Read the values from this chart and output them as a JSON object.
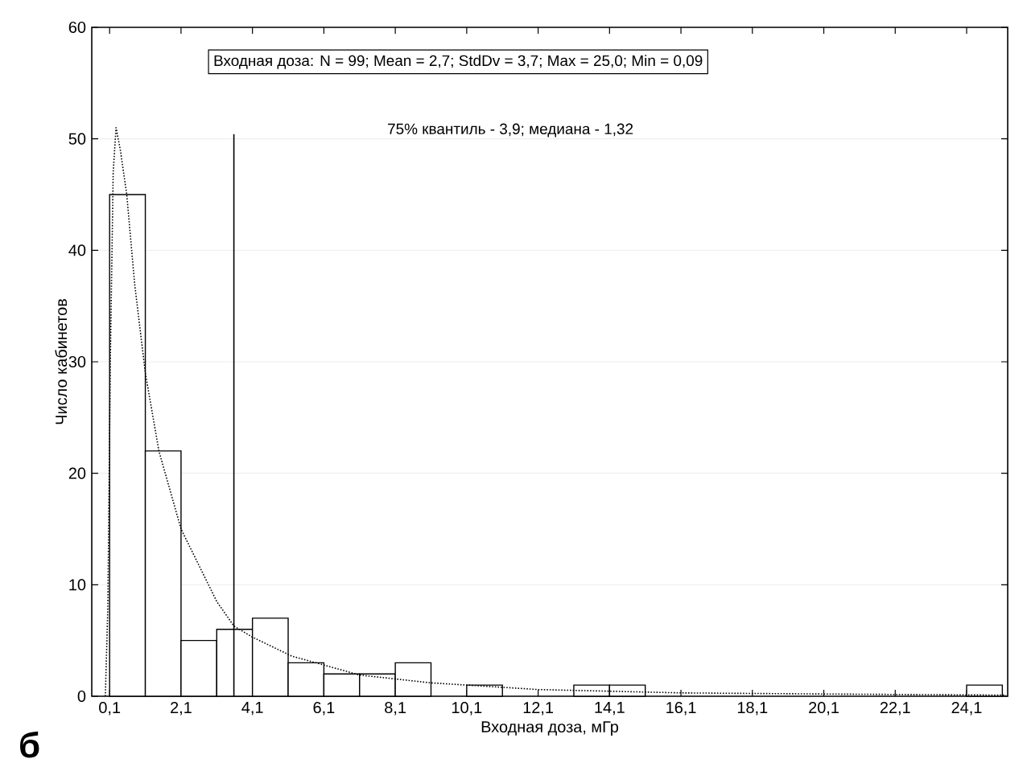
{
  "chart_data": {
    "type": "histogram",
    "title": "Входная доза:   N = 99; Mean = 2,7; StdDv = 3,7; Max = 25,0; Min = 0,09",
    "xlabel": "Входная доза, мГр",
    "ylabel": "Число кабинетов",
    "annotations": [
      "75% квантиль - 3,9; медиана - 1,32",
      "б"
    ],
    "bins": [
      0.1,
      1.1,
      2.1,
      3.1,
      4.1,
      5.1,
      6.1,
      7.1,
      8.1,
      9.1,
      10.1,
      11.1,
      12.1,
      13.1,
      14.1,
      15.1,
      16.1,
      17.1,
      18.1,
      19.1,
      20.1,
      21.1,
      22.1,
      23.1,
      24.1,
      25.1
    ],
    "values": [
      45,
      22,
      5,
      6,
      7,
      3,
      2,
      2,
      3,
      0,
      1,
      0,
      0,
      1,
      1,
      0,
      0,
      0,
      0,
      0,
      0,
      0,
      0,
      0,
      1
    ],
    "color": "#ffffff",
    "series": [
      {
        "type": "line",
        "line_style": "dotted",
        "color": "#000000",
        "x": [
          -0.02,
          0.05,
          0.12,
          0.2,
          0.28,
          0.4,
          0.58,
          0.8,
          1.1,
          1.48,
          2.1,
          3.1,
          3.58,
          4.1,
          5.2,
          6.1,
          7.1,
          9.1,
          12.1,
          16.1,
          20.1,
          25.2
        ],
        "values": [
          0,
          8,
          30,
          47,
          51,
          49,
          45,
          37,
          29,
          22,
          15,
          8.5,
          6.3,
          5.3,
          3.6,
          2.8,
          1.9,
          1.2,
          0.6,
          0.3,
          0.2,
          0.1
        ]
      },
      {
        "type": "line",
        "line_style": "solid",
        "color": "#000000",
        "x": [
          3.58,
          3.58
        ],
        "values": [
          0,
          50.4
        ]
      }
    ],
    "xlim": [
      -0.4,
      25.25
    ],
    "ylim": [
      0,
      60
    ],
    "xticks": [
      {
        "value": 0.1,
        "label": "0,1"
      },
      {
        "value": 2.1,
        "label": "2,1"
      },
      {
        "value": 4.1,
        "label": "4,1"
      },
      {
        "value": 6.1,
        "label": "6,1"
      },
      {
        "value": 8.1,
        "label": "8,1"
      },
      {
        "value": 10.1,
        "label": "10,1"
      },
      {
        "value": 12.1,
        "label": "12,1"
      },
      {
        "value": 14.1,
        "label": "14,1"
      },
      {
        "value": 16.1,
        "label": "16,1"
      },
      {
        "value": 18.1,
        "label": "18,1"
      },
      {
        "value": 20.1,
        "label": "20,1"
      },
      {
        "value": 22.1,
        "label": "22,1"
      },
      {
        "value": 24.1,
        "label": "24,1"
      }
    ],
    "yticks": [
      0,
      10,
      20,
      30,
      40,
      50,
      60
    ],
    "grid": "y"
  }
}
